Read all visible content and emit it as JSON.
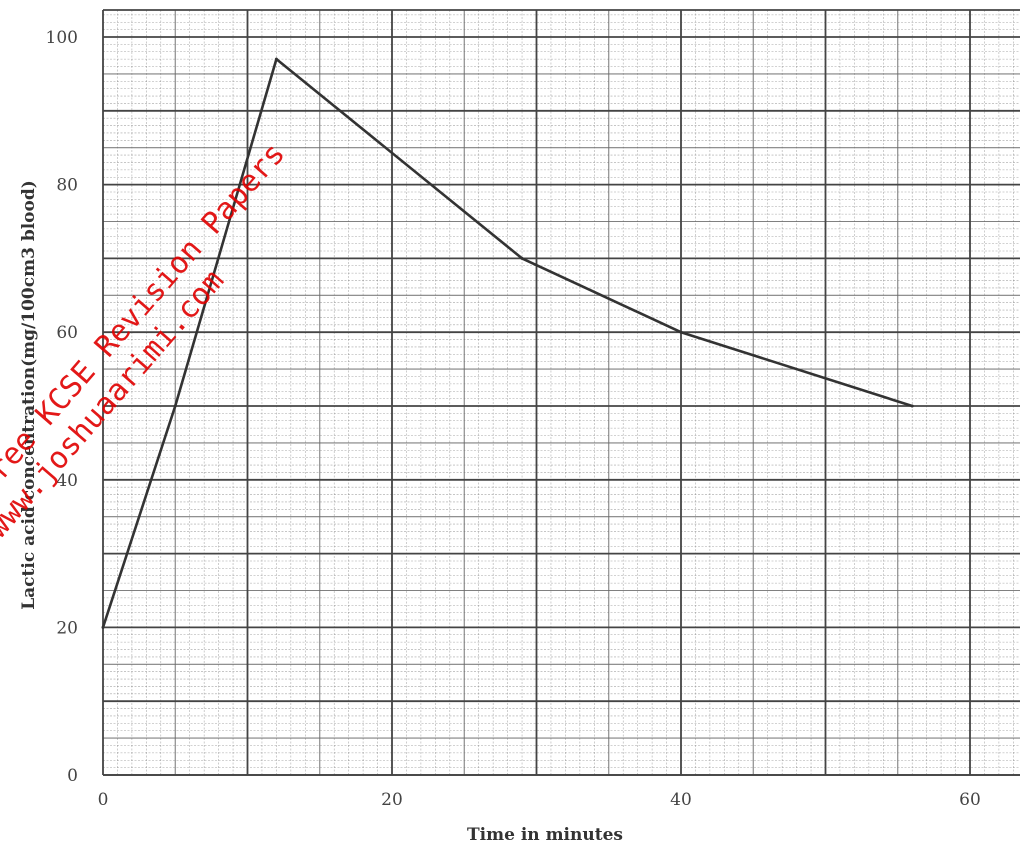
{
  "chart_data": {
    "type": "line",
    "title": "",
    "xlabel": "Time in minutes",
    "ylabel": "Lactic acid concentration(mg/100cm3 blood)",
    "xlim": [
      0,
      60
    ],
    "ylim": [
      0,
      100
    ],
    "x_ticks": [
      "0",
      "20",
      "40",
      "60"
    ],
    "y_ticks": [
      "0",
      "20",
      "40",
      "60",
      "80",
      "100"
    ],
    "grid": true,
    "series": [
      {
        "x": [
          0,
          5,
          12,
          29,
          40,
          56
        ],
        "y": [
          20,
          50,
          97,
          70,
          60,
          50
        ]
      }
    ],
    "line_color": "#333333",
    "grid_color": "#6a6a6a"
  },
  "watermark": {
    "line1": "Free KCSE Revision Papers",
    "line2": "www.joshuaarimi.com",
    "color": "#e00000"
  }
}
